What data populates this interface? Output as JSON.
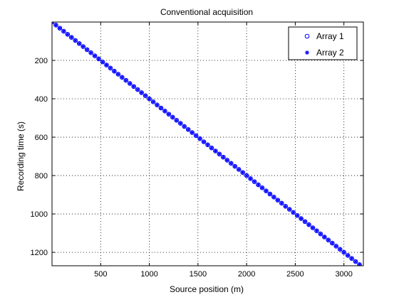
{
  "chart_data": {
    "type": "scatter",
    "title": "Conventional acquisition",
    "xlabel": "Source position (m)",
    "ylabel": "Recording time (s)",
    "xlim": [
      0,
      3200
    ],
    "ylim": [
      1270,
      0
    ],
    "y_reversed": true,
    "grid": true,
    "grid_style": "dotted",
    "legend_position": "top-right",
    "xticks": [
      500,
      1000,
      1500,
      2000,
      2500,
      3000
    ],
    "yticks": [
      200,
      400,
      600,
      800,
      1000,
      1200
    ],
    "x": [
      0,
      40,
      80,
      120,
      160,
      200,
      240,
      280,
      320,
      360,
      400,
      440,
      480,
      520,
      560,
      600,
      640,
      680,
      720,
      760,
      800,
      840,
      880,
      920,
      960,
      1000,
      1040,
      1080,
      1120,
      1160,
      1200,
      1240,
      1280,
      1320,
      1360,
      1400,
      1440,
      1480,
      1520,
      1560,
      1600,
      1640,
      1680,
      1720,
      1760,
      1800,
      1840,
      1880,
      1920,
      1960,
      2000,
      2040,
      2080,
      2120,
      2160,
      2200,
      2240,
      2280,
      2320,
      2360,
      2400,
      2440,
      2480,
      2520,
      2560,
      2600,
      2640,
      2680,
      2720,
      2760,
      2800,
      2840,
      2880,
      2920,
      2960,
      3000,
      3040,
      3080,
      3120,
      3160
    ],
    "series": [
      {
        "name": "Array 1",
        "marker": "o",
        "color": "#0000ff",
        "values": [
          0,
          16,
          32,
          48,
          64,
          80,
          96,
          112,
          128,
          144,
          160,
          176,
          192,
          208,
          224,
          240,
          256,
          272,
          288,
          304,
          320,
          336,
          352,
          368,
          384,
          400,
          416,
          432,
          448,
          464,
          480,
          496,
          512,
          528,
          544,
          560,
          576,
          592,
          608,
          624,
          640,
          656,
          672,
          688,
          704,
          720,
          736,
          752,
          768,
          784,
          800,
          816,
          832,
          848,
          864,
          880,
          896,
          912,
          928,
          944,
          960,
          976,
          992,
          1008,
          1024,
          1040,
          1056,
          1072,
          1088,
          1104,
          1120,
          1136,
          1152,
          1168,
          1184,
          1200,
          1216,
          1232,
          1248,
          1264
        ]
      },
      {
        "name": "Array 2",
        "marker": "*",
        "color": "#0000ff",
        "values": [
          0,
          16,
          32,
          48,
          64,
          80,
          96,
          112,
          128,
          144,
          160,
          176,
          192,
          208,
          224,
          240,
          256,
          272,
          288,
          304,
          320,
          336,
          352,
          368,
          384,
          400,
          416,
          432,
          448,
          464,
          480,
          496,
          512,
          528,
          544,
          560,
          576,
          592,
          608,
          624,
          640,
          656,
          672,
          688,
          704,
          720,
          736,
          752,
          768,
          784,
          800,
          816,
          832,
          848,
          864,
          880,
          896,
          912,
          928,
          944,
          960,
          976,
          992,
          1008,
          1024,
          1040,
          1056,
          1072,
          1088,
          1104,
          1120,
          1136,
          1152,
          1168,
          1184,
          1200,
          1216,
          1232,
          1248,
          1264
        ]
      }
    ]
  }
}
